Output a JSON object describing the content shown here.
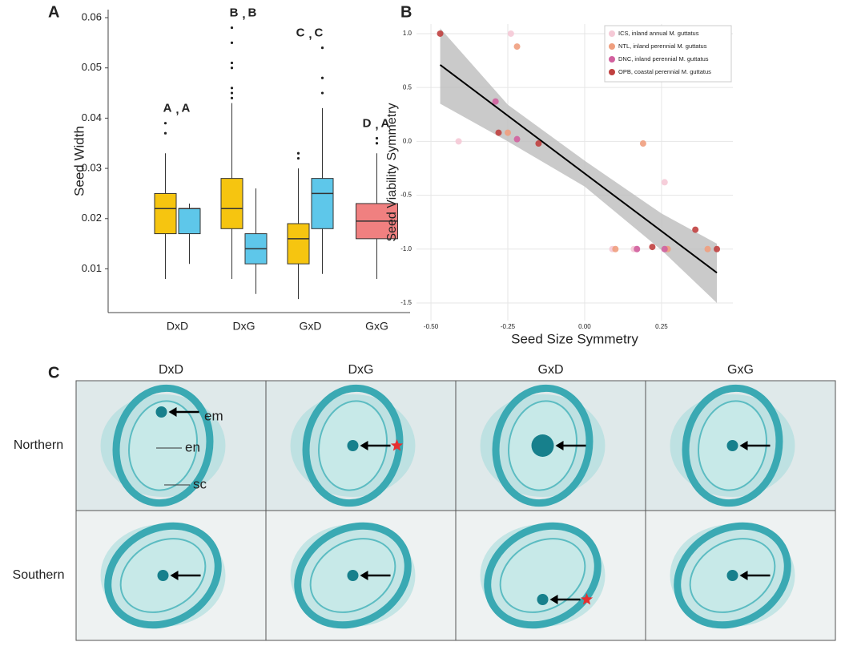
{
  "chart_data": [
    {
      "type": "box",
      "label": "A",
      "ylabel": "Seed Width",
      "categories": [
        "DxD",
        "DxG",
        "GxD",
        "GxG"
      ],
      "ylim": [
        0.0013,
        0.0616
      ],
      "yticks": [
        0.01,
        0.02,
        0.03,
        0.04,
        0.05,
        0.06
      ],
      "separator": ",",
      "letter_colors": [
        "#f6c510",
        "#5ec7ea"
      ],
      "groups": [
        {
          "letters": [
            "A",
            "A"
          ],
          "boxes": [
            {
              "color": "#f6c510",
              "whislo": 0.008,
              "q1": 0.017,
              "med": 0.022,
              "q3": 0.025,
              "whishi": 0.033,
              "fliers": [
                0.037,
                0.039
              ]
            },
            {
              "color": "#5ec7ea",
              "whislo": 0.011,
              "q1": 0.017,
              "med": 0.022,
              "q3": 0.022,
              "whishi": 0.023,
              "fliers": []
            }
          ]
        },
        {
          "letters": [
            "B",
            "B"
          ],
          "boxes": [
            {
              "color": "#f6c510",
              "whislo": 0.008,
              "q1": 0.018,
              "med": 0.022,
              "q3": 0.028,
              "whishi": 0.043,
              "fliers": [
                0.044,
                0.045,
                0.046,
                0.05,
                0.051,
                0.055,
                0.058
              ]
            },
            {
              "color": "#5ec7ea",
              "whislo": 0.005,
              "q1": 0.011,
              "med": 0.014,
              "q3": 0.017,
              "whishi": 0.026,
              "fliers": []
            }
          ]
        },
        {
          "letters": [
            "C",
            "C"
          ],
          "boxes": [
            {
              "color": "#f6c510",
              "whislo": 0.004,
              "q1": 0.011,
              "med": 0.016,
              "q3": 0.019,
              "whishi": 0.03,
              "fliers": [
                0.032,
                0.033
              ]
            },
            {
              "color": "#5ec7ea",
              "whislo": 0.009,
              "q1": 0.018,
              "med": 0.025,
              "q3": 0.028,
              "whishi": 0.042,
              "fliers": [
                0.045,
                0.048,
                0.054
              ]
            }
          ]
        },
        {
          "letters": [
            "D",
            "A"
          ],
          "boxes": [
            {
              "color": "#f08080",
              "whislo": 0.008,
              "q1": 0.016,
              "med": 0.0195,
              "q3": 0.023,
              "whishi": 0.033,
              "fliers": [
                0.035,
                0.036
              ]
            }
          ]
        }
      ]
    },
    {
      "type": "scatter",
      "label": "B",
      "xlabel": "Seed Size Symmetry",
      "ylabel": "Seed Viability Symmetry",
      "grid": true,
      "legend": "top-right",
      "xlim": [
        -0.547,
        0.482
      ],
      "ylim": [
        -1.664,
        1.089
      ],
      "xticks": [
        {
          "value": -0.5,
          "label": "-0.50"
        },
        -0.25,
        {
          "value": 0,
          "label": "0.00"
        },
        0.25
      ],
      "yticks": [
        {
          "value": 1,
          "label": "1.0"
        },
        0.5,
        {
          "value": 0,
          "label": "0.0"
        },
        -0.5,
        {
          "value": -1,
          "label": "-1.0"
        },
        -1.5
      ],
      "series": [
        {
          "name": "ICS, inland annual M. guttatus",
          "color": "#f5c9d6",
          "x": [
            -0.41,
            -0.24,
            0.09,
            0.17,
            0.26,
            0.16
          ],
          "y": [
            0.0,
            1.0,
            -1.0,
            -1.0,
            -0.38,
            -1.0
          ]
        },
        {
          "name": "NTL, inland perennial M. guttatus",
          "color": "#ef9e7e",
          "x": [
            -0.22,
            -0.25,
            0.19,
            0.27,
            0.4,
            0.1
          ],
          "y": [
            0.88,
            0.08,
            -0.02,
            -1.0,
            -1.0,
            -1.0
          ]
        },
        {
          "name": "DNC, inland perennial M. guttatus",
          "color": "#d2609e",
          "x": [
            -0.29,
            -0.22,
            0.26,
            0.17
          ],
          "y": [
            0.37,
            0.02,
            -1.0,
            -1.0
          ]
        },
        {
          "name": "OPB, coastal perennial M. guttatus",
          "color": "#c0403f",
          "x": [
            -0.47,
            -0.28,
            -0.15,
            0.22,
            0.36,
            0.43
          ],
          "y": [
            1.0,
            0.08,
            -0.02,
            -0.98,
            -0.82,
            -1.0
          ]
        }
      ],
      "fit": {
        "color": "#000000",
        "x": [
          -0.47,
          0.43
        ],
        "y": [
          0.71,
          -1.22
        ]
      },
      "band": {
        "color": "#bdbdbd",
        "x": [
          -0.47,
          -0.25,
          0,
          0.25,
          0.43
        ],
        "upper": [
          1.05,
          0.34,
          -0.18,
          -0.67,
          -0.95
        ],
        "lower": [
          0.35,
          0.0,
          -0.42,
          -1.01,
          -1.5
        ]
      }
    }
  ],
  "panel_c": {
    "label": "C",
    "columns": [
      "DxD",
      "DxG",
      "GxD",
      "GxG"
    ],
    "rows": [
      {
        "label": "Northern",
        "color": "#f6c510"
      },
      {
        "label": "Southern",
        "color": "#5ec7ea"
      }
    ],
    "annotations": [
      "em",
      "en",
      "sc"
    ]
  }
}
